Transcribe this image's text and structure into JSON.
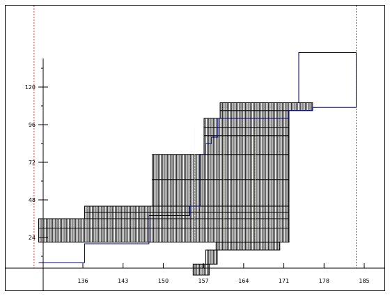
{
  "chart_data": {
    "type": "area",
    "title": "",
    "xlabel": "",
    "ylabel": "",
    "xlim": [
      128.3,
      188.8
    ],
    "ylim": [
      -8,
      168
    ],
    "x_ticks": [
      "136",
      "143",
      "150",
      "157",
      "164",
      "171",
      "178",
      "185"
    ],
    "y_ticks": [
      "24",
      "48",
      "72",
      "96",
      "120"
    ],
    "x_tick_values": [
      136,
      143,
      150,
      157,
      164,
      171,
      178,
      185
    ],
    "y_tick_values": [
      24,
      48,
      72,
      96,
      120
    ],
    "vertical_reference_lines": [
      127.5,
      183.6
    ],
    "colors": {
      "hatch": "#000000",
      "axes": "#000000",
      "step_line": "#00007f",
      "reference_line": "#cc0000",
      "stripe": "#f5f58c"
    },
    "bands": [
      {
        "x0": 155.2,
        "x1": 158.0,
        "y0": 0,
        "y1": 7
      },
      {
        "x0": 157.4,
        "x1": 159.4,
        "y0": 7,
        "y1": 16
      },
      {
        "x0": 159.2,
        "x1": 170.3,
        "y0": 16,
        "y1": 21
      },
      {
        "x0": 128.3,
        "x1": 171.9,
        "y0": 21,
        "y1": 30
      },
      {
        "x0": 128.3,
        "x1": 171.9,
        "y0": 30,
        "y1": 36
      },
      {
        "x0": 136.3,
        "x1": 171.9,
        "y0": 36,
        "y1": 40
      },
      {
        "x0": 136.3,
        "x1": 171.9,
        "y0": 40,
        "y1": 44
      },
      {
        "x0": 148.1,
        "x1": 171.9,
        "y0": 44,
        "y1": 61
      },
      {
        "x0": 148.1,
        "x1": 171.9,
        "y0": 61,
        "y1": 77
      },
      {
        "x0": 157.1,
        "x1": 171.9,
        "y0": 77,
        "y1": 89
      },
      {
        "x0": 157.1,
        "x1": 171.9,
        "y0": 89,
        "y1": 94
      },
      {
        "x0": 157.1,
        "x1": 171.9,
        "y0": 94,
        "y1": 100
      },
      {
        "x0": 159.9,
        "x1": 171.9,
        "y0": 100,
        "y1": 105
      },
      {
        "x0": 159.9,
        "x1": 176.0,
        "y0": 105,
        "y1": 110
      }
    ],
    "step_line": [
      [
        128.3,
        8
      ],
      [
        136.3,
        8
      ],
      [
        136.3,
        20
      ],
      [
        147.5,
        20
      ],
      [
        147.5,
        38
      ],
      [
        154.6,
        38
      ],
      [
        154.6,
        44
      ],
      [
        156.4,
        44
      ],
      [
        156.4,
        77
      ],
      [
        157.4,
        77
      ],
      [
        157.4,
        84
      ],
      [
        158.4,
        84
      ],
      [
        158.4,
        88
      ],
      [
        159.5,
        88
      ],
      [
        159.5,
        94
      ],
      [
        159.5,
        100
      ],
      [
        171.9,
        100
      ],
      [
        171.9,
        105
      ],
      [
        176.0,
        105
      ],
      [
        176.0,
        107
      ],
      [
        183.6,
        107
      ],
      [
        183.6,
        142
      ],
      [
        173.6,
        142
      ],
      [
        173.6,
        110
      ]
    ]
  }
}
